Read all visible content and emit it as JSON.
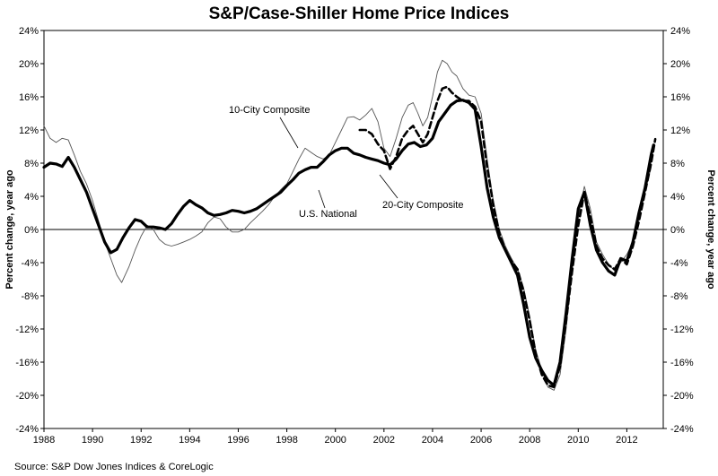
{
  "chart_data": {
    "type": "line",
    "title": "S&P/Case-Shiller Home Price Indices",
    "ylabel_left": "Percent change, year ago",
    "ylabel_right": "Percent change, year ago",
    "xlim": [
      1988,
      2013.5
    ],
    "ylim": [
      -24,
      24
    ],
    "x_ticks": [
      {
        "value": 1988,
        "label": "1988"
      },
      {
        "value": 1990,
        "label": "1990"
      },
      {
        "value": 1992,
        "label": "1992"
      },
      {
        "value": 1994,
        "label": "1994"
      },
      {
        "value": 1996,
        "label": "1996"
      },
      {
        "value": 1998,
        "label": "1998"
      },
      {
        "value": 2000,
        "label": "2000"
      },
      {
        "value": 2002,
        "label": "2002"
      },
      {
        "value": 2004,
        "label": "2004"
      },
      {
        "value": 2006,
        "label": "2006"
      },
      {
        "value": 2008,
        "label": "2008"
      },
      {
        "value": 2010,
        "label": "2010"
      },
      {
        "value": 2012,
        "label": "2012"
      }
    ],
    "y_ticks": [
      {
        "value": 24,
        "label": "24%"
      },
      {
        "value": 20,
        "label": "20%"
      },
      {
        "value": 16,
        "label": "16%"
      },
      {
        "value": 12,
        "label": "12%"
      },
      {
        "value": 8,
        "label": "8%"
      },
      {
        "value": 4,
        "label": "4%"
      },
      {
        "value": 0,
        "label": "0%"
      },
      {
        "value": -4,
        "label": "-4%"
      },
      {
        "value": -8,
        "label": "-8%"
      },
      {
        "value": -12,
        "label": "-12%"
      },
      {
        "value": -16,
        "label": "-16%"
      },
      {
        "value": -20,
        "label": "-20%"
      },
      {
        "value": -24,
        "label": "-24%"
      }
    ],
    "grid": false,
    "zero_line": true,
    "series": [
      {
        "name": "10-City Composite",
        "style": "thin",
        "color": "#555555",
        "points": [
          [
            1988.0,
            12.5
          ],
          [
            1988.25,
            11.0
          ],
          [
            1988.5,
            10.5
          ],
          [
            1988.75,
            11.0
          ],
          [
            1989.0,
            10.8
          ],
          [
            1989.25,
            9.0
          ],
          [
            1989.5,
            7.0
          ],
          [
            1989.75,
            5.5
          ],
          [
            1990.0,
            3.5
          ],
          [
            1990.25,
            1.0
          ],
          [
            1990.5,
            -1.5
          ],
          [
            1990.75,
            -3.5
          ],
          [
            1991.0,
            -5.5
          ],
          [
            1991.2,
            -6.4
          ],
          [
            1991.5,
            -4.5
          ],
          [
            1991.75,
            -2.5
          ],
          [
            1992.0,
            -0.8
          ],
          [
            1992.25,
            0.5
          ],
          [
            1992.5,
            0.0
          ],
          [
            1992.75,
            -1.2
          ],
          [
            1993.0,
            -1.8
          ],
          [
            1993.25,
            -2.0
          ],
          [
            1993.5,
            -1.8
          ],
          [
            1993.75,
            -1.5
          ],
          [
            1994.0,
            -1.2
          ],
          [
            1994.25,
            -0.8
          ],
          [
            1994.5,
            -0.3
          ],
          [
            1994.75,
            0.8
          ],
          [
            1995.0,
            1.5
          ],
          [
            1995.25,
            1.3
          ],
          [
            1995.5,
            0.3
          ],
          [
            1995.75,
            -0.3
          ],
          [
            1996.0,
            -0.3
          ],
          [
            1996.25,
            0.0
          ],
          [
            1996.5,
            0.8
          ],
          [
            1996.75,
            1.5
          ],
          [
            1997.0,
            2.2
          ],
          [
            1997.25,
            3.0
          ],
          [
            1997.5,
            4.0
          ],
          [
            1997.75,
            4.8
          ],
          [
            1998.0,
            5.5
          ],
          [
            1998.25,
            7.0
          ],
          [
            1998.5,
            8.5
          ],
          [
            1998.75,
            9.8
          ],
          [
            1999.0,
            9.3
          ],
          [
            1999.25,
            8.8
          ],
          [
            1999.5,
            8.5
          ],
          [
            1999.75,
            9.0
          ],
          [
            2000.0,
            10.5
          ],
          [
            2000.25,
            12.0
          ],
          [
            2000.5,
            13.5
          ],
          [
            2000.75,
            13.6
          ],
          [
            2001.0,
            13.2
          ],
          [
            2001.25,
            13.8
          ],
          [
            2001.5,
            14.6
          ],
          [
            2001.75,
            13.0
          ],
          [
            2002.0,
            9.8
          ],
          [
            2002.25,
            8.8
          ],
          [
            2002.5,
            11.0
          ],
          [
            2002.75,
            13.5
          ],
          [
            2003.0,
            15.0
          ],
          [
            2003.2,
            15.3
          ],
          [
            2003.4,
            14.0
          ],
          [
            2003.6,
            12.5
          ],
          [
            2003.8,
            13.5
          ],
          [
            2004.0,
            16.0
          ],
          [
            2004.2,
            19.0
          ],
          [
            2004.4,
            20.4
          ],
          [
            2004.6,
            20.0
          ],
          [
            2004.8,
            19.0
          ],
          [
            2005.0,
            18.5
          ],
          [
            2005.25,
            17.0
          ],
          [
            2005.5,
            16.2
          ],
          [
            2005.75,
            16.0
          ],
          [
            2006.0,
            14.0
          ],
          [
            2006.25,
            8.5
          ],
          [
            2006.5,
            3.5
          ],
          [
            2006.75,
            0.0
          ],
          [
            2007.0,
            -2.0
          ],
          [
            2007.25,
            -3.5
          ],
          [
            2007.5,
            -4.8
          ],
          [
            2007.75,
            -7.0
          ],
          [
            2008.0,
            -10.5
          ],
          [
            2008.25,
            -14.5
          ],
          [
            2008.5,
            -17.0
          ],
          [
            2008.75,
            -19.0
          ],
          [
            2009.0,
            -19.4
          ],
          [
            2009.25,
            -17.5
          ],
          [
            2009.5,
            -12.0
          ],
          [
            2009.75,
            -5.0
          ],
          [
            2010.0,
            1.5
          ],
          [
            2010.25,
            5.2
          ],
          [
            2010.5,
            2.5
          ],
          [
            2010.75,
            -1.5
          ],
          [
            2011.0,
            -3.0
          ],
          [
            2011.25,
            -4.2
          ],
          [
            2011.5,
            -5.0
          ],
          [
            2011.75,
            -4.0
          ],
          [
            2012.0,
            -3.0
          ],
          [
            2012.25,
            -1.5
          ],
          [
            2012.5,
            1.5
          ],
          [
            2012.75,
            4.5
          ],
          [
            2013.0,
            7.5
          ]
        ]
      },
      {
        "name": "20-City Composite",
        "style": "dashed",
        "color": "#000000",
        "points": [
          [
            2001.0,
            12.0
          ],
          [
            2001.25,
            12.0
          ],
          [
            2001.5,
            11.5
          ],
          [
            2001.75,
            10.3
          ],
          [
            2002.0,
            9.5
          ],
          [
            2002.25,
            7.3
          ],
          [
            2002.5,
            8.8
          ],
          [
            2002.75,
            11.0
          ],
          [
            2003.0,
            12.0
          ],
          [
            2003.2,
            12.5
          ],
          [
            2003.4,
            11.5
          ],
          [
            2003.6,
            10.5
          ],
          [
            2003.8,
            11.5
          ],
          [
            2004.0,
            13.5
          ],
          [
            2004.2,
            15.5
          ],
          [
            2004.4,
            17.0
          ],
          [
            2004.6,
            17.2
          ],
          [
            2004.8,
            16.5
          ],
          [
            2005.0,
            16.0
          ],
          [
            2005.25,
            15.5
          ],
          [
            2005.5,
            15.5
          ],
          [
            2005.75,
            14.8
          ],
          [
            2006.0,
            13.0
          ],
          [
            2006.25,
            7.5
          ],
          [
            2006.5,
            3.0
          ],
          [
            2006.75,
            -0.5
          ],
          [
            2007.0,
            -2.5
          ],
          [
            2007.25,
            -3.8
          ],
          [
            2007.5,
            -4.8
          ],
          [
            2007.75,
            -7.5
          ],
          [
            2008.0,
            -11.0
          ],
          [
            2008.25,
            -15.0
          ],
          [
            2008.5,
            -17.5
          ],
          [
            2008.75,
            -18.8
          ],
          [
            2009.0,
            -19.0
          ],
          [
            2009.25,
            -16.5
          ],
          [
            2009.5,
            -11.0
          ],
          [
            2009.75,
            -5.0
          ],
          [
            2010.0,
            0.5
          ],
          [
            2010.25,
            4.5
          ],
          [
            2010.5,
            1.5
          ],
          [
            2010.75,
            -2.0
          ],
          [
            2011.0,
            -3.5
          ],
          [
            2011.25,
            -4.3
          ],
          [
            2011.5,
            -4.8
          ],
          [
            2011.75,
            -3.5
          ],
          [
            2012.0,
            -4.2
          ],
          [
            2012.25,
            -2.0
          ],
          [
            2012.5,
            1.0
          ],
          [
            2012.75,
            4.5
          ],
          [
            2013.0,
            8.0
          ],
          [
            2013.17,
            10.9
          ]
        ]
      },
      {
        "name": "U.S. National",
        "style": "thick",
        "color": "#000000",
        "points": [
          [
            1988.0,
            7.5
          ],
          [
            1988.25,
            8.0
          ],
          [
            1988.5,
            7.9
          ],
          [
            1988.75,
            7.6
          ],
          [
            1989.0,
            8.7
          ],
          [
            1989.25,
            7.5
          ],
          [
            1989.5,
            6.0
          ],
          [
            1989.75,
            4.5
          ],
          [
            1990.0,
            2.5
          ],
          [
            1990.25,
            0.5
          ],
          [
            1990.5,
            -1.5
          ],
          [
            1990.75,
            -2.8
          ],
          [
            1991.0,
            -2.4
          ],
          [
            1991.25,
            -1.0
          ],
          [
            1991.5,
            0.2
          ],
          [
            1991.75,
            1.2
          ],
          [
            1992.0,
            1.0
          ],
          [
            1992.25,
            0.3
          ],
          [
            1992.5,
            0.3
          ],
          [
            1992.75,
            0.2
          ],
          [
            1993.0,
            0.0
          ],
          [
            1993.25,
            0.7
          ],
          [
            1993.5,
            1.8
          ],
          [
            1993.75,
            2.8
          ],
          [
            1994.0,
            3.5
          ],
          [
            1994.25,
            3.0
          ],
          [
            1994.5,
            2.6
          ],
          [
            1994.75,
            2.0
          ],
          [
            1995.0,
            1.7
          ],
          [
            1995.25,
            1.8
          ],
          [
            1995.5,
            2.0
          ],
          [
            1995.75,
            2.3
          ],
          [
            1996.0,
            2.2
          ],
          [
            1996.25,
            2.0
          ],
          [
            1996.5,
            2.2
          ],
          [
            1996.75,
            2.5
          ],
          [
            1997.0,
            3.0
          ],
          [
            1997.25,
            3.5
          ],
          [
            1997.5,
            4.0
          ],
          [
            1997.75,
            4.5
          ],
          [
            1998.0,
            5.3
          ],
          [
            1998.25,
            6.0
          ],
          [
            1998.5,
            6.8
          ],
          [
            1998.75,
            7.2
          ],
          [
            1999.0,
            7.5
          ],
          [
            1999.25,
            7.5
          ],
          [
            1999.5,
            8.2
          ],
          [
            1999.75,
            9.0
          ],
          [
            2000.0,
            9.5
          ],
          [
            2000.25,
            9.8
          ],
          [
            2000.5,
            9.8
          ],
          [
            2000.75,
            9.2
          ],
          [
            2001.0,
            9.0
          ],
          [
            2001.25,
            8.7
          ],
          [
            2001.5,
            8.5
          ],
          [
            2001.75,
            8.3
          ],
          [
            2002.0,
            8.0
          ],
          [
            2002.25,
            7.8
          ],
          [
            2002.5,
            8.5
          ],
          [
            2002.75,
            9.5
          ],
          [
            2003.0,
            10.3
          ],
          [
            2003.25,
            10.5
          ],
          [
            2003.5,
            10.0
          ],
          [
            2003.75,
            10.2
          ],
          [
            2004.0,
            11.0
          ],
          [
            2004.25,
            13.0
          ],
          [
            2004.5,
            14.0
          ],
          [
            2004.75,
            15.0
          ],
          [
            2005.0,
            15.5
          ],
          [
            2005.25,
            15.6
          ],
          [
            2005.5,
            15.3
          ],
          [
            2005.75,
            14.5
          ],
          [
            2006.0,
            10.0
          ],
          [
            2006.25,
            5.0
          ],
          [
            2006.5,
            1.5
          ],
          [
            2006.75,
            -1.0
          ],
          [
            2007.0,
            -2.5
          ],
          [
            2007.25,
            -4.0
          ],
          [
            2007.5,
            -5.5
          ],
          [
            2007.75,
            -9.0
          ],
          [
            2008.0,
            -13.0
          ],
          [
            2008.25,
            -15.5
          ],
          [
            2008.5,
            -17.0
          ],
          [
            2008.75,
            -18.2
          ],
          [
            2009.0,
            -18.8
          ],
          [
            2009.25,
            -16.0
          ],
          [
            2009.5,
            -10.0
          ],
          [
            2009.75,
            -3.5
          ],
          [
            2010.0,
            2.5
          ],
          [
            2010.25,
            4.5
          ],
          [
            2010.5,
            0.5
          ],
          [
            2010.75,
            -2.5
          ],
          [
            2011.0,
            -4.0
          ],
          [
            2011.25,
            -5.0
          ],
          [
            2011.5,
            -5.5
          ],
          [
            2011.75,
            -3.5
          ],
          [
            2012.0,
            -3.8
          ],
          [
            2012.25,
            -1.5
          ],
          [
            2012.5,
            2.0
          ],
          [
            2012.75,
            5.0
          ],
          [
            2013.0,
            9.0
          ],
          [
            2013.1,
            10.2
          ]
        ]
      }
    ],
    "annotations": [
      {
        "text": "10-City Composite",
        "series": "10-City Composite"
      },
      {
        "text": "U.S. National",
        "series": "U.S. National"
      },
      {
        "text": "20-City Composite",
        "series": "20-City Composite"
      }
    ],
    "source": "Source: S&P Dow Jones Indices & CoreLogic"
  }
}
